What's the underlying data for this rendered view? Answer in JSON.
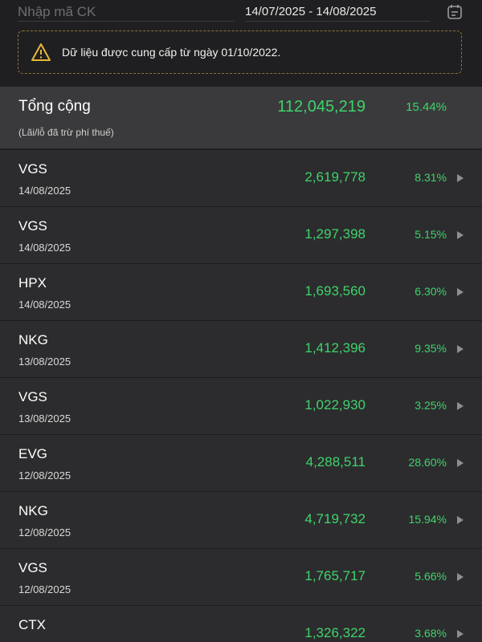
{
  "header": {
    "search_placeholder": "Nhập mã CK",
    "date_range": "14/07/2025 - 14/08/2025"
  },
  "notice": "Dữ liệu được cung cấp từ ngày 01/10/2022.",
  "total": {
    "label": "Tổng cộng",
    "note": "(Lãi/lỗ đã trừ phí thuế)",
    "value": "112,045,219",
    "percent": "15.44%"
  },
  "rows": [
    {
      "symbol": "VGS",
      "date": "14/08/2025",
      "value": "2,619,778",
      "percent": "8.31%"
    },
    {
      "symbol": "VGS",
      "date": "14/08/2025",
      "value": "1,297,398",
      "percent": "5.15%"
    },
    {
      "symbol": "HPX",
      "date": "14/08/2025",
      "value": "1,693,560",
      "percent": "6.30%"
    },
    {
      "symbol": "NKG",
      "date": "13/08/2025",
      "value": "1,412,396",
      "percent": "9.35%"
    },
    {
      "symbol": "VGS",
      "date": "13/08/2025",
      "value": "1,022,930",
      "percent": "3.25%"
    },
    {
      "symbol": "EVG",
      "date": "12/08/2025",
      "value": "4,288,511",
      "percent": "28.60%"
    },
    {
      "symbol": "NKG",
      "date": "12/08/2025",
      "value": "4,719,732",
      "percent": "15.94%"
    },
    {
      "symbol": "VGS",
      "date": "12/08/2025",
      "value": "1,765,717",
      "percent": "5.66%"
    },
    {
      "symbol": "CTX",
      "value": "1,326,322",
      "percent": "3.68%"
    }
  ]
}
